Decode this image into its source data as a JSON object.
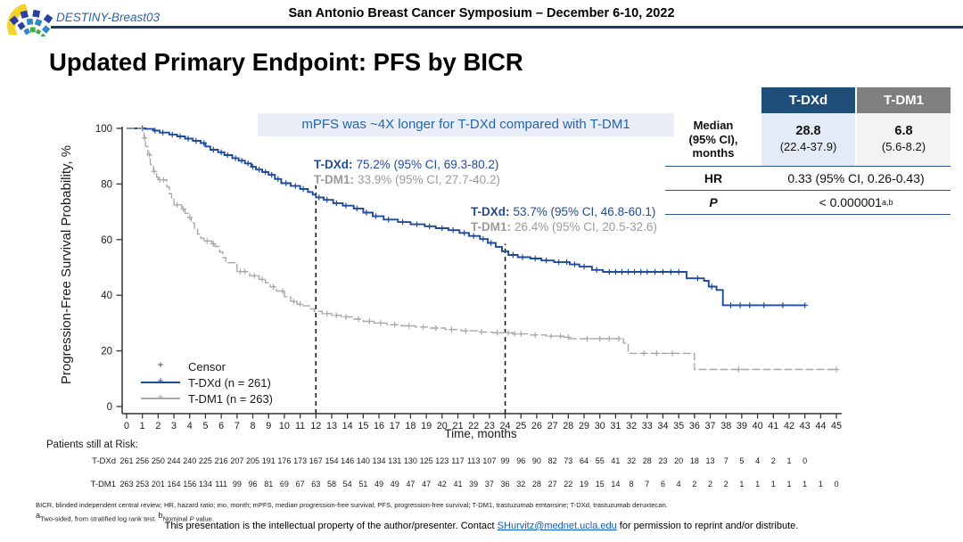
{
  "header": {
    "logo_label": "DESTINY-Breast03",
    "symposium": "San Antonio Breast Cancer Symposium – December 6-10, 2022"
  },
  "title": "Updated Primary Endpoint: PFS by BICR",
  "banner": "mPFS was ~4X longer for T-DXd compared with T-DM1",
  "colors": {
    "tdxd_blue": "#1f4a9e",
    "tdm1_gray": "#a8a8a8",
    "banner_bg": "#e9eef8",
    "banner_text": "#2565ae",
    "header_rule_navy": "#1f3864",
    "table_header_blue": "#1f4e79",
    "table_header_gray": "#7f7f7f",
    "table_line_navy": "#2e5597"
  },
  "summary_table": {
    "col_tdxd": "T-DXd",
    "col_tdm1": "T-DM1",
    "median_label_lines": [
      "Median",
      "(95% CI),",
      "months"
    ],
    "tdxd_median": "28.8",
    "tdxd_ci": "(22.4-37.9)",
    "tdm1_median": "6.8",
    "tdm1_ci": "(5.6-8.2)",
    "hr_label": "HR",
    "hr_value": "0.33 (95% CI, 0.26-0.43)",
    "p_label": "P",
    "p_value": "< 0.000001",
    "p_sup": "a,b"
  },
  "chart_data": {
    "type": "line",
    "subtype": "kaplan-meier-step",
    "xlabel": "Time, months",
    "ylabel": "Progression-Free Survival Probability, %",
    "xlim": [
      0,
      45
    ],
    "xtick_interval": 1,
    "ylim": [
      0,
      100
    ],
    "yticks": [
      0,
      20,
      40,
      60,
      80,
      100
    ],
    "grid": false,
    "legend_position": "inside-bottom-left",
    "series": [
      {
        "name": "T-DXd (n = 261)",
        "color": "#1f4a9e",
        "dashed": false,
        "steps": [
          [
            0,
            100
          ],
          [
            1.2,
            99.8
          ],
          [
            1.7,
            99.2
          ],
          [
            2.1,
            98.5
          ],
          [
            2.7,
            97.8
          ],
          [
            3.2,
            97.1
          ],
          [
            3.7,
            96.3
          ],
          [
            4.2,
            95.5
          ],
          [
            4.7,
            94.7
          ],
          [
            5.0,
            93.5
          ],
          [
            5.3,
            92.3
          ],
          [
            5.8,
            91.4
          ],
          [
            6.2,
            90.4
          ],
          [
            6.7,
            89.3
          ],
          [
            7.1,
            88.4
          ],
          [
            7.5,
            87.4
          ],
          [
            7.9,
            86.2
          ],
          [
            8.2,
            85.2
          ],
          [
            8.6,
            84.3
          ],
          [
            9.0,
            83.3
          ],
          [
            9.4,
            81.8
          ],
          [
            9.8,
            80.3
          ],
          [
            10.4,
            79.3
          ],
          [
            11.0,
            78.2
          ],
          [
            11.5,
            77.1
          ],
          [
            11.8,
            76.2
          ],
          [
            12.0,
            75.2
          ],
          [
            12.5,
            74.3
          ],
          [
            13.1,
            73.1
          ],
          [
            13.7,
            72.2
          ],
          [
            14.4,
            71.2
          ],
          [
            15.0,
            69.7
          ],
          [
            15.6,
            68.4
          ],
          [
            16.3,
            67.2
          ],
          [
            17.2,
            66.3
          ],
          [
            18.0,
            65.5
          ],
          [
            18.9,
            64.8
          ],
          [
            19.6,
            64.1
          ],
          [
            20.4,
            63.4
          ],
          [
            21.1,
            62.4
          ],
          [
            21.7,
            61.3
          ],
          [
            22.4,
            60.2
          ],
          [
            22.9,
            58.8
          ],
          [
            23.4,
            57.4
          ],
          [
            23.8,
            55.8
          ],
          [
            24.2,
            54.5
          ],
          [
            24.8,
            53.7
          ],
          [
            25.6,
            53.2
          ],
          [
            26.3,
            52.5
          ],
          [
            27.1,
            51.9
          ],
          [
            28.1,
            51.1
          ],
          [
            28.7,
            50.3
          ],
          [
            29.5,
            49.1
          ],
          [
            30.2,
            48.4
          ],
          [
            35.5,
            46.1
          ],
          [
            36.6,
            45.2
          ],
          [
            36.9,
            43.1
          ],
          [
            37.4,
            41.9
          ],
          [
            37.8,
            36.4
          ],
          [
            43,
            36.4
          ]
        ],
        "censor_times": [
          1.0,
          1.8,
          2.3,
          2.9,
          3.4,
          3.9,
          4.4,
          4.9,
          5.5,
          6.0,
          6.4,
          6.9,
          7.3,
          7.7,
          8.0,
          8.4,
          8.8,
          9.2,
          9.6,
          10.1,
          10.7,
          11.2,
          12.2,
          12.7,
          13.3,
          13.9,
          14.6,
          15.2,
          15.8,
          16.6,
          17.5,
          18.4,
          19.2,
          20.0,
          20.7,
          21.4,
          22.0,
          22.6,
          23.1,
          24.5,
          25.1,
          25.9,
          26.6,
          27.4,
          27.9,
          28.4,
          29.0,
          29.8,
          30.6,
          31.0,
          31.4,
          31.8,
          32.2,
          32.6,
          33.0,
          33.5,
          34.0,
          34.5,
          35.0,
          36.2,
          37.1,
          38.3,
          38.9,
          39.5,
          40.4,
          41.6,
          43.0
        ]
      },
      {
        "name": "T-DM1 (n = 263)",
        "color": "#a8a8a8",
        "dashed": true,
        "steps": [
          [
            0,
            100
          ],
          [
            1.0,
            99.5
          ],
          [
            1.1,
            96.5
          ],
          [
            1.2,
            93.5
          ],
          [
            1.35,
            90.5
          ],
          [
            1.5,
            87
          ],
          [
            1.7,
            84.5
          ],
          [
            1.9,
            82.5
          ],
          [
            2.0,
            81.5
          ],
          [
            2.55,
            79
          ],
          [
            2.7,
            76.5
          ],
          [
            2.85,
            74.5
          ],
          [
            3.0,
            72.5
          ],
          [
            3.5,
            71
          ],
          [
            3.7,
            69.5
          ],
          [
            3.9,
            68
          ],
          [
            4.1,
            66
          ],
          [
            4.3,
            64
          ],
          [
            4.5,
            62
          ],
          [
            4.7,
            60.5
          ],
          [
            4.9,
            59.5
          ],
          [
            5.4,
            58.5
          ],
          [
            5.6,
            57.5
          ],
          [
            5.9,
            55.5
          ],
          [
            6.1,
            53.5
          ],
          [
            6.3,
            51.7
          ],
          [
            7.0,
            48.5
          ],
          [
            7.8,
            47
          ],
          [
            8.4,
            45.7
          ],
          [
            8.8,
            44.5
          ],
          [
            9.1,
            43
          ],
          [
            9.5,
            41.5
          ],
          [
            10.0,
            39.5
          ],
          [
            10.4,
            37.8
          ],
          [
            10.8,
            36.8
          ],
          [
            11.2,
            36.2
          ],
          [
            11.6,
            35.1
          ],
          [
            11.9,
            34.2
          ],
          [
            12.4,
            33.4
          ],
          [
            13.0,
            32.8
          ],
          [
            13.6,
            32.2
          ],
          [
            14.3,
            31.4
          ],
          [
            15.0,
            30.6
          ],
          [
            15.7,
            30
          ],
          [
            16.5,
            29.4
          ],
          [
            17.4,
            29
          ],
          [
            18.3,
            28.6
          ],
          [
            19.2,
            28.2
          ],
          [
            20.2,
            27.7
          ],
          [
            21.2,
            27.2
          ],
          [
            22.2,
            26.8
          ],
          [
            23.2,
            26.5
          ],
          [
            24.5,
            26.1
          ],
          [
            25.5,
            25.7
          ],
          [
            26.6,
            25.3
          ],
          [
            27.7,
            24.9
          ],
          [
            28.1,
            24.4
          ],
          [
            31.5,
            22.8
          ],
          [
            31.8,
            19.1
          ],
          [
            36.0,
            13.3
          ],
          [
            45,
            13.3
          ]
        ],
        "censor_times": [
          1.15,
          1.45,
          1.75,
          2.1,
          2.35,
          3.2,
          3.6,
          4.0,
          5.1,
          5.5,
          7.2,
          7.5,
          8.1,
          8.6,
          9.3,
          9.9,
          10.6,
          11.0,
          12.7,
          13.3,
          13.9,
          14.7,
          15.4,
          16.1,
          17.0,
          17.9,
          18.8,
          19.6,
          20.6,
          21.5,
          22.5,
          23.5,
          24.2,
          24.6,
          25.0,
          25.9,
          26.9,
          27.5,
          28.0,
          29.2,
          30.0,
          30.6,
          31.2,
          32.8,
          33.6,
          34.6,
          38.8,
          45.0
        ]
      }
    ],
    "landmarks": [
      {
        "time": 12,
        "top_pct": 79.5,
        "tdxd_label": "T-DXd:",
        "tdxd_value": "75.2% (95% CI, 69.3-80.2)",
        "tdm1_label": "T-DM1:",
        "tdm1_value": "33.9% (95% CI, 27.7-40.2)"
      },
      {
        "time": 24,
        "top_pct": 58.5,
        "tdxd_label": "T-DXd:",
        "tdxd_value": "53.7% (95% CI, 46.8-60.1)",
        "tdm1_label": "T-DM1:",
        "tdm1_value": "26.4% (95% CI, 20.5-32.6)"
      }
    ],
    "legend": {
      "censor_label": "Censor"
    }
  },
  "risk_table": {
    "title": "Patients still at Risk:",
    "rows": [
      {
        "label": "T-DXd",
        "counts": [
          261,
          256,
          250,
          244,
          240,
          225,
          216,
          207,
          205,
          191,
          176,
          173,
          167,
          154,
          146,
          140,
          134,
          131,
          130,
          125,
          123,
          117,
          113,
          107,
          99,
          96,
          90,
          82,
          73,
          64,
          55,
          41,
          32,
          28,
          23,
          20,
          18,
          13,
          7,
          5,
          4,
          2,
          1,
          0
        ]
      },
      {
        "label": "T-DM1",
        "counts": [
          263,
          253,
          201,
          164,
          156,
          134,
          111,
          99,
          96,
          81,
          69,
          67,
          63,
          58,
          54,
          51,
          49,
          49,
          47,
          47,
          42,
          41,
          39,
          37,
          36,
          32,
          28,
          27,
          22,
          19,
          15,
          14,
          8,
          7,
          6,
          4,
          2,
          2,
          2,
          1,
          1,
          1,
          1,
          1,
          1,
          0
        ]
      }
    ]
  },
  "footnotes": {
    "abbrev": "BICR, blinded independent central review; HR, hazard ratio; mo, month; mPFS, median progression-free survival; PFS, progression-free survival; T-DM1, trastuzumab emtansine; T-DXd, trastuzumab deruxtecan.",
    "a_sup": "a",
    "a_text": "Two-sided, from stratified log rank test. ",
    "b_sup": "b",
    "b_text1": "Nominal ",
    "b_italic": "P",
    "b_text2": " value."
  },
  "contact": {
    "pre": "This presentation is the intellectual property of the author/presenter. Contact ",
    "email": "SHurvitz@mednet.ucla.edu",
    "post": " for permission to reprint and/or distribute."
  }
}
